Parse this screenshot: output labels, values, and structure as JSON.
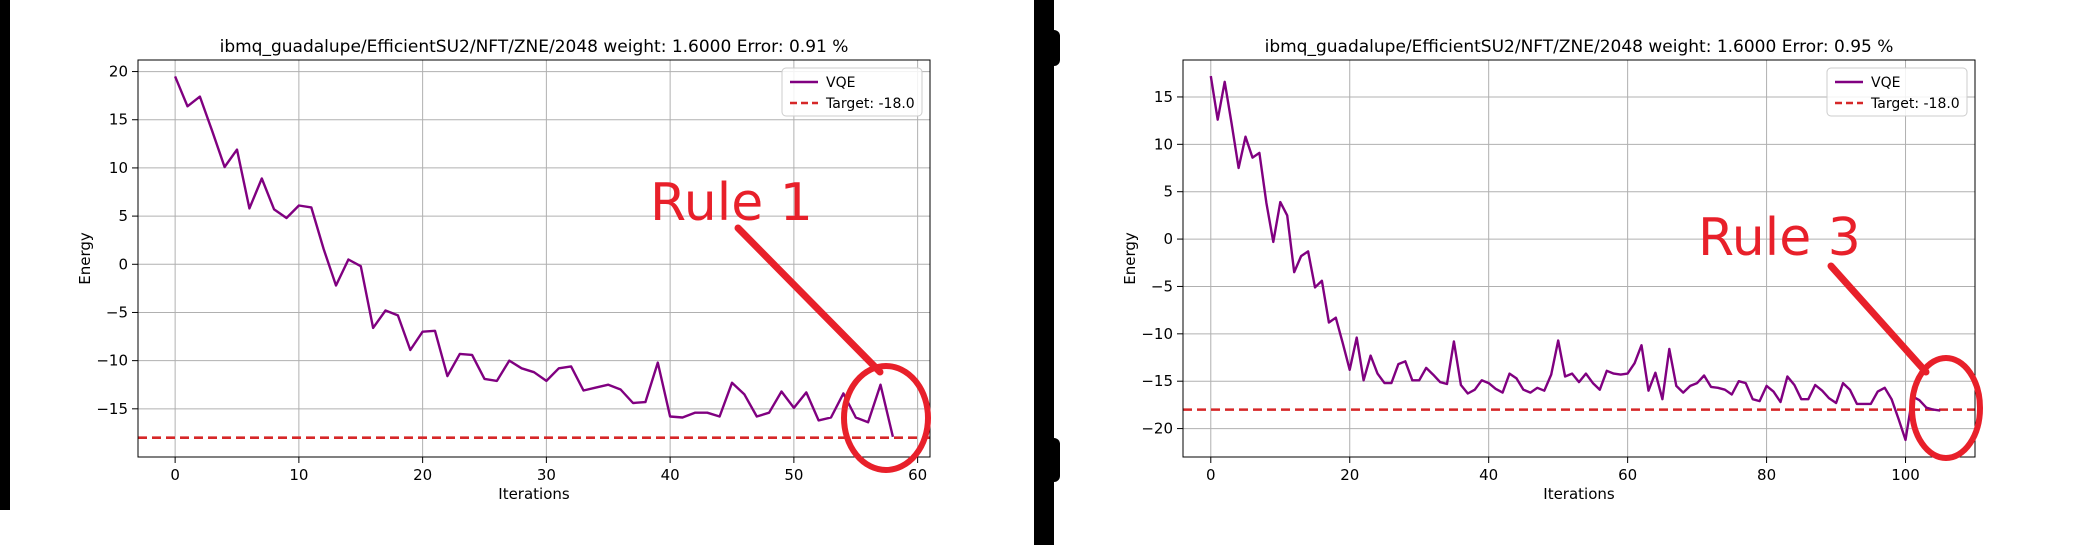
{
  "colors": {
    "vqe_line": "#800080",
    "target_line": "#d62728",
    "annotation": "#e8202a",
    "grid": "#b0b0b0"
  },
  "chart_data": [
    {
      "type": "line",
      "title": "ibmq_guadalupe/EfficientSU2/NFT/ZNE/2048 weight: 1.6000 Error: 0.91 %",
      "xlabel": "Iterations",
      "ylabel": "Energy",
      "xlim": [
        -3,
        61
      ],
      "ylim": [
        -20,
        21.2
      ],
      "xticks": [
        0,
        10,
        20,
        30,
        40,
        50,
        60
      ],
      "yticks": [
        -15,
        -10,
        -5,
        0,
        5,
        10,
        15,
        20
      ],
      "grid": true,
      "legend_position": "top-right",
      "series": [
        {
          "name": "VQE",
          "x": [
            0,
            1,
            2,
            3,
            4,
            5,
            6,
            7,
            8,
            9,
            10,
            11,
            12,
            13,
            14,
            15,
            16,
            17,
            18,
            19,
            20,
            21,
            22,
            23,
            24,
            25,
            26,
            27,
            28,
            29,
            30,
            31,
            32,
            33,
            34,
            35,
            36,
            37,
            38,
            39,
            40,
            41,
            42,
            43,
            44,
            45,
            46,
            47,
            48,
            49,
            50,
            51,
            52,
            53,
            54,
            55,
            56,
            57,
            58
          ],
          "values": [
            19.5,
            16.4,
            17.4,
            13.8,
            10.1,
            11.9,
            5.8,
            8.9,
            5.7,
            4.8,
            6.1,
            5.9,
            1.6,
            -2.2,
            0.5,
            -0.2,
            -6.6,
            -4.8,
            -5.3,
            -8.9,
            -7.0,
            -6.9,
            -11.6,
            -9.3,
            -9.4,
            -11.9,
            -12.1,
            -10.0,
            -10.8,
            -11.2,
            -12.1,
            -10.8,
            -10.6,
            -13.1,
            -12.8,
            -12.5,
            -13.0,
            -14.4,
            -14.3,
            -10.2,
            -15.8,
            -15.9,
            -15.4,
            -15.4,
            -15.8,
            -12.3,
            -13.5,
            -15.8,
            -15.4,
            -13.2,
            -14.9,
            -13.3,
            -16.2,
            -15.9,
            -13.4,
            -15.9,
            -16.4,
            -12.5,
            -17.9
          ]
        },
        {
          "name": "Target: -18.0",
          "constant": -18.0
        }
      ],
      "annotation": {
        "text": "Rule 1"
      }
    },
    {
      "type": "line",
      "title": "ibmq_guadalupe/EfficientSU2/NFT/ZNE/2048 weight: 1.6000 Error: 0.95 %",
      "xlabel": "Iterations",
      "ylabel": "Energy",
      "xlim": [
        -4,
        110
      ],
      "ylim": [
        -23,
        18.9
      ],
      "xticks": [
        0,
        20,
        40,
        60,
        80,
        100
      ],
      "yticks": [
        -20,
        -15,
        -10,
        -5,
        0,
        5,
        10,
        15
      ],
      "grid": true,
      "legend_position": "top-right",
      "series": [
        {
          "name": "VQE",
          "x": [
            0,
            1,
            2,
            3,
            4,
            5,
            6,
            7,
            8,
            9,
            10,
            11,
            12,
            13,
            14,
            15,
            16,
            17,
            18,
            19,
            20,
            21,
            22,
            23,
            24,
            25,
            26,
            27,
            28,
            29,
            30,
            31,
            32,
            33,
            34,
            35,
            36,
            37,
            38,
            39,
            40,
            41,
            42,
            43,
            44,
            45,
            46,
            47,
            48,
            49,
            50,
            51,
            52,
            53,
            54,
            55,
            56,
            57,
            58,
            59,
            60,
            61,
            62,
            63,
            64,
            65,
            66,
            67,
            68,
            69,
            70,
            71,
            72,
            73,
            74,
            75,
            76,
            77,
            78,
            79,
            80,
            81,
            82,
            83,
            84,
            85,
            86,
            87,
            88,
            89,
            90,
            91,
            92,
            93,
            94,
            95,
            96,
            97,
            98,
            99,
            100,
            101,
            102,
            103,
            104,
            105
          ],
          "values": [
            17.2,
            12.6,
            16.6,
            12.2,
            7.5,
            10.8,
            8.6,
            9.1,
            3.8,
            -0.3,
            3.9,
            2.5,
            -3.5,
            -1.8,
            -1.3,
            -5.1,
            -4.4,
            -8.8,
            -8.3,
            -11.0,
            -13.8,
            -10.4,
            -14.9,
            -12.3,
            -14.2,
            -15.2,
            -15.2,
            -13.2,
            -12.9,
            -14.9,
            -14.9,
            -13.6,
            -14.3,
            -15.1,
            -15.3,
            -10.8,
            -15.4,
            -16.3,
            -15.9,
            -14.9,
            -15.2,
            -15.8,
            -16.2,
            -14.2,
            -14.7,
            -15.9,
            -16.2,
            -15.7,
            -16.0,
            -14.3,
            -10.7,
            -14.5,
            -14.2,
            -15.1,
            -14.2,
            -15.2,
            -15.9,
            -13.9,
            -14.2,
            -14.3,
            -14.2,
            -13.1,
            -11.2,
            -16.0,
            -14.1,
            -16.9,
            -11.6,
            -15.5,
            -16.2,
            -15.5,
            -15.2,
            -14.4,
            -15.6,
            -15.7,
            -15.9,
            -16.4,
            -15.0,
            -15.2,
            -16.9,
            -17.1,
            -15.5,
            -16.1,
            -17.2,
            -14.5,
            -15.4,
            -16.9,
            -16.9,
            -15.4,
            -16.0,
            -16.8,
            -17.3,
            -15.2,
            -15.9,
            -17.4,
            -17.4,
            -17.4,
            -16.1,
            -15.7,
            -16.9,
            -19.0,
            -21.2,
            -16.6,
            -17.0,
            -17.8,
            -18.0,
            -18.1
          ]
        },
        {
          "name": "Target: -18.0",
          "constant": -18.0
        }
      ],
      "annotation": {
        "text": "Rule 3"
      }
    }
  ]
}
